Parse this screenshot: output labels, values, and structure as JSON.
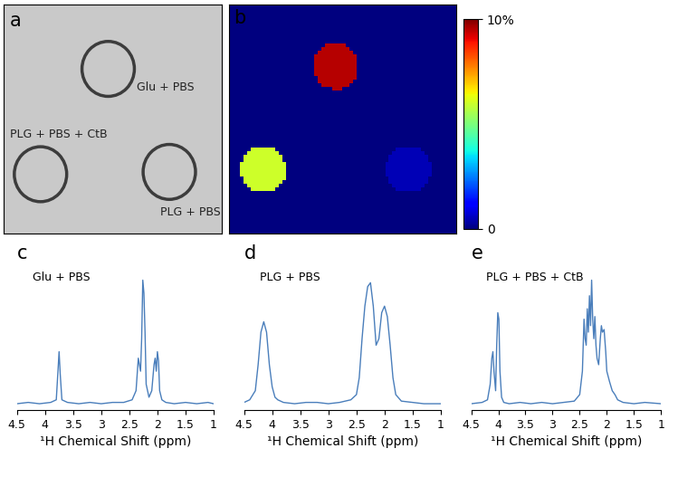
{
  "chart_data": [
    {
      "panel": "a",
      "type": "image",
      "xlim": [
        0,
        100
      ],
      "ylim": [
        0,
        100
      ],
      "tick_labels": false,
      "vials": [
        {
          "label": "Glu + PBS",
          "x": 48,
          "y": 28,
          "radius": 12
        },
        {
          "label": "PLG + PBS + CtB",
          "x": 17,
          "y": 74,
          "radius": 12
        },
        {
          "label": "PLG + PBS",
          "x": 76,
          "y": 73,
          "radius": 12
        }
      ]
    },
    {
      "panel": "b",
      "type": "heatmap",
      "xlim": [
        0,
        100
      ],
      "ylim": [
        0,
        100
      ],
      "tick_labels": false,
      "background": 0,
      "regions": [
        {
          "x": 47,
          "y": 27,
          "radius": 10,
          "value": 9.5
        },
        {
          "x": 15,
          "y": 72,
          "radius": 10,
          "value": 6
        },
        {
          "x": 79,
          "y": 72,
          "radius": 10,
          "value": 0.5
        }
      ],
      "colorbar": {
        "range": [
          0,
          10
        ],
        "ticks": [
          0,
          {
            "value": 10,
            "label": "10%"
          }
        ]
      }
    },
    {
      "panel": "c",
      "type": "line",
      "title": "Glu + PBS",
      "xlabel": "¹H Chemical Shift (ppm)",
      "xlim": [
        4.5,
        1
      ],
      "xticks": [
        4.5,
        4,
        3.5,
        3,
        2.5,
        2,
        1.5,
        1
      ],
      "ylim": [
        0,
        110
      ],
      "tick_labels": "x",
      "color": "#4a7ebb",
      "x": [
        4.5,
        4.3,
        4.1,
        3.9,
        3.8,
        3.77,
        3.75,
        3.73,
        3.7,
        3.6,
        3.4,
        3.2,
        3.0,
        2.8,
        2.6,
        2.45,
        2.38,
        2.34,
        2.3,
        2.28,
        2.26,
        2.24,
        2.22,
        2.2,
        2.15,
        2.1,
        2.06,
        2.04,
        2.02,
        2.0,
        1.98,
        1.96,
        1.92,
        1.85,
        1.7,
        1.5,
        1.3,
        1.1,
        1.0
      ],
      "values": [
        5,
        6,
        5,
        6,
        8,
        30,
        45,
        28,
        8,
        6,
        5,
        6,
        5,
        6,
        6,
        8,
        15,
        40,
        30,
        55,
        100,
        90,
        60,
        20,
        10,
        15,
        35,
        40,
        30,
        45,
        38,
        15,
        8,
        6,
        5,
        6,
        5,
        6,
        5
      ]
    },
    {
      "panel": "d",
      "type": "line",
      "title": "PLG + PBS",
      "xlabel": "¹H Chemical Shift (ppm)",
      "xlim": [
        4.5,
        1
      ],
      "xticks": [
        4.5,
        4,
        3.5,
        3,
        2.5,
        2,
        1.5,
        1
      ],
      "ylim": [
        0,
        110
      ],
      "tick_labels": "x",
      "color": "#4a7ebb",
      "x": [
        4.5,
        4.4,
        4.3,
        4.25,
        4.2,
        4.15,
        4.1,
        4.05,
        4.0,
        3.95,
        3.9,
        3.8,
        3.6,
        3.4,
        3.2,
        3.0,
        2.8,
        2.6,
        2.5,
        2.45,
        2.4,
        2.35,
        2.3,
        2.25,
        2.2,
        2.15,
        2.1,
        2.05,
        2.0,
        1.95,
        1.9,
        1.85,
        1.8,
        1.7,
        1.5,
        1.3,
        1.0
      ],
      "values": [
        6,
        8,
        15,
        35,
        60,
        68,
        60,
        35,
        18,
        10,
        8,
        6,
        5,
        6,
        6,
        5,
        6,
        8,
        12,
        25,
        55,
        80,
        95,
        98,
        80,
        50,
        55,
        75,
        80,
        72,
        50,
        25,
        12,
        7,
        6,
        5,
        5
      ]
    },
    {
      "panel": "e",
      "type": "line",
      "title": "PLG + PBS + CtB",
      "xlabel": "¹H Chemical Shift (ppm)",
      "xlim": [
        4.5,
        1
      ],
      "xticks": [
        4.5,
        4,
        3.5,
        3,
        2.5,
        2,
        1.5,
        1
      ],
      "ylim": [
        0,
        110
      ],
      "tick_labels": "x",
      "color": "#4a7ebb",
      "x": [
        4.5,
        4.3,
        4.2,
        4.15,
        4.12,
        4.1,
        4.08,
        4.05,
        4.03,
        4.01,
        3.99,
        3.97,
        3.94,
        3.9,
        3.8,
        3.6,
        3.4,
        3.2,
        3.0,
        2.8,
        2.6,
        2.5,
        2.45,
        2.42,
        2.4,
        2.38,
        2.36,
        2.34,
        2.32,
        2.3,
        2.28,
        2.26,
        2.24,
        2.22,
        2.2,
        2.18,
        2.15,
        2.12,
        2.1,
        2.08,
        2.05,
        2.02,
        2.0,
        1.95,
        1.9,
        1.85,
        1.8,
        1.7,
        1.5,
        1.3,
        1.0
      ],
      "values": [
        5,
        6,
        8,
        20,
        40,
        45,
        30,
        15,
        50,
        75,
        70,
        30,
        10,
        6,
        5,
        6,
        5,
        6,
        5,
        6,
        7,
        12,
        30,
        70,
        55,
        50,
        78,
        60,
        88,
        65,
        100,
        70,
        55,
        72,
        50,
        40,
        35,
        55,
        65,
        60,
        62,
        45,
        30,
        22,
        15,
        12,
        8,
        6,
        5,
        6,
        5
      ]
    }
  ]
}
